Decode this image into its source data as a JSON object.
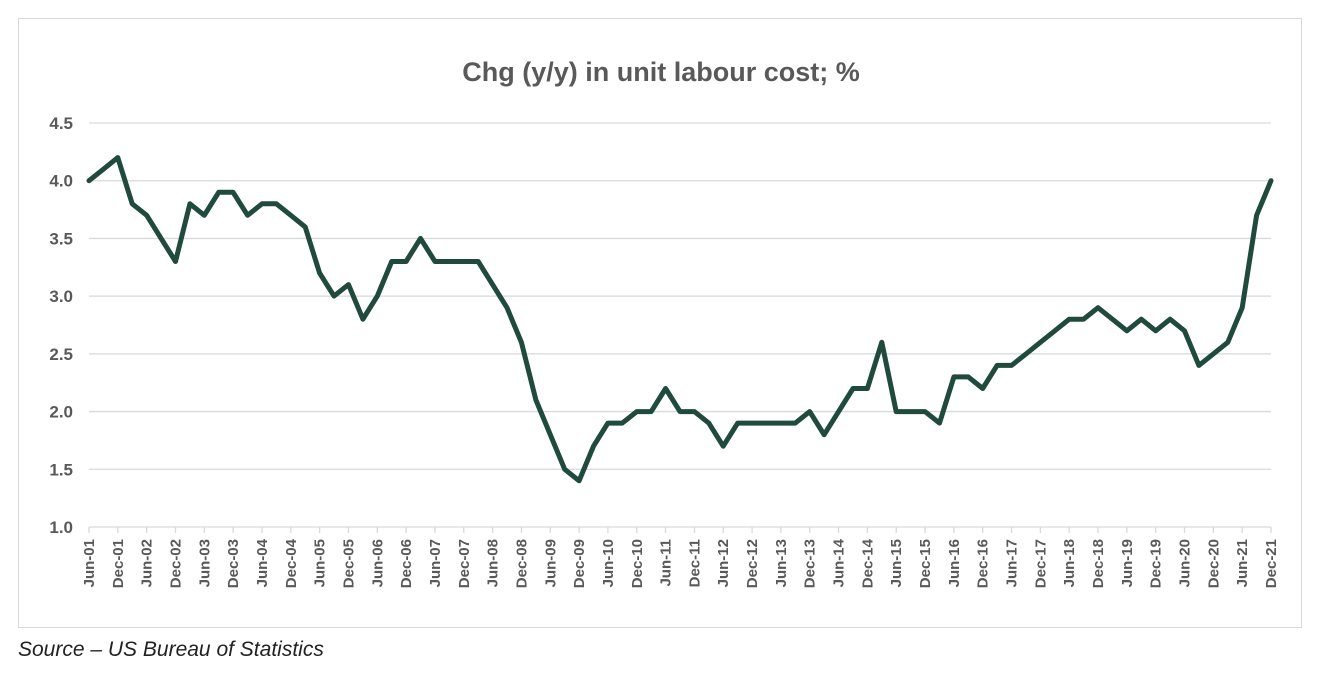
{
  "chart_data": {
    "type": "line",
    "title": "Chg (y/y) in unit labour cost; %",
    "xlabel": "",
    "ylabel": "",
    "ylim": [
      1.0,
      4.5
    ],
    "yticks": [
      "1.0",
      "1.5",
      "2.0",
      "2.5",
      "3.0",
      "3.5",
      "4.0",
      "4.5"
    ],
    "grid": true,
    "legend": "none",
    "line_color": "#1f4a3d",
    "x_tick_labels": [
      "Jun-01",
      "Dec-01",
      "Jun-02",
      "Dec-02",
      "Jun-03",
      "Dec-03",
      "Jun-04",
      "Dec-04",
      "Jun-05",
      "Dec-05",
      "Jun-06",
      "Dec-06",
      "Jun-07",
      "Dec-07",
      "Jun-08",
      "Dec-08",
      "Jun-09",
      "Dec-09",
      "Jun-10",
      "Dec-10",
      "Jun-11",
      "Dec-11",
      "Jun-12",
      "Dec-12",
      "Jun-13",
      "Dec-13",
      "Jun-14",
      "Dec-14",
      "Jun-15",
      "Dec-15",
      "Jun-16",
      "Dec-16",
      "Jun-17",
      "Dec-17",
      "Jun-18",
      "Dec-18",
      "Jun-19",
      "Dec-19",
      "Jun-20",
      "Dec-20",
      "Jun-21",
      "Dec-21"
    ],
    "series": [
      {
        "x": [
          "Jun-01",
          "Sep-01",
          "Dec-01",
          "Mar-02",
          "Jun-02",
          "Sep-02",
          "Dec-02",
          "Mar-03",
          "Jun-03",
          "Sep-03",
          "Dec-03",
          "Mar-04",
          "Jun-04",
          "Sep-04",
          "Dec-04",
          "Mar-05",
          "Jun-05",
          "Sep-05",
          "Dec-05",
          "Mar-06",
          "Jun-06",
          "Sep-06",
          "Dec-06",
          "Mar-07",
          "Jun-07",
          "Sep-07",
          "Dec-07",
          "Mar-08",
          "Jun-08",
          "Sep-08",
          "Dec-08",
          "Mar-09",
          "Jun-09",
          "Sep-09",
          "Dec-09",
          "Mar-10",
          "Jun-10",
          "Sep-10",
          "Dec-10",
          "Mar-11",
          "Jun-11",
          "Sep-11",
          "Dec-11",
          "Mar-12",
          "Jun-12",
          "Sep-12",
          "Dec-12",
          "Mar-13",
          "Jun-13",
          "Sep-13",
          "Dec-13",
          "Mar-14",
          "Jun-14",
          "Sep-14",
          "Dec-14",
          "Mar-15",
          "Jun-15",
          "Sep-15",
          "Dec-15",
          "Mar-16",
          "Jun-16",
          "Sep-16",
          "Dec-16",
          "Mar-17",
          "Jun-17",
          "Sep-17",
          "Dec-17",
          "Mar-18",
          "Jun-18",
          "Sep-18",
          "Dec-18",
          "Mar-19",
          "Jun-19",
          "Sep-19",
          "Dec-19",
          "Mar-20",
          "Jun-20",
          "Sep-20",
          "Dec-20",
          "Mar-21",
          "Jun-21",
          "Sep-21",
          "Dec-21"
        ],
        "values": [
          4.0,
          4.1,
          4.2,
          3.8,
          3.7,
          3.5,
          3.3,
          3.8,
          3.7,
          3.9,
          3.9,
          3.7,
          3.8,
          3.8,
          3.7,
          3.6,
          3.2,
          3.0,
          3.1,
          2.8,
          3.0,
          3.3,
          3.3,
          3.5,
          3.3,
          3.3,
          3.3,
          3.3,
          3.1,
          2.9,
          2.6,
          2.1,
          1.8,
          1.5,
          1.4,
          1.7,
          1.9,
          1.9,
          2.0,
          2.0,
          2.2,
          2.0,
          2.0,
          1.9,
          1.7,
          1.9,
          1.9,
          1.9,
          1.9,
          1.9,
          2.0,
          1.8,
          2.0,
          2.2,
          2.2,
          2.6,
          2.0,
          2.0,
          2.0,
          1.9,
          2.3,
          2.3,
          2.2,
          2.4,
          2.4,
          2.5,
          2.6,
          2.7,
          2.8,
          2.8,
          2.9,
          2.8,
          2.7,
          2.8,
          2.7,
          2.8,
          2.7,
          2.4,
          2.5,
          2.6,
          2.9,
          3.7,
          4.0
        ]
      }
    ]
  },
  "source_note": "Source – US Bureau of Statistics"
}
